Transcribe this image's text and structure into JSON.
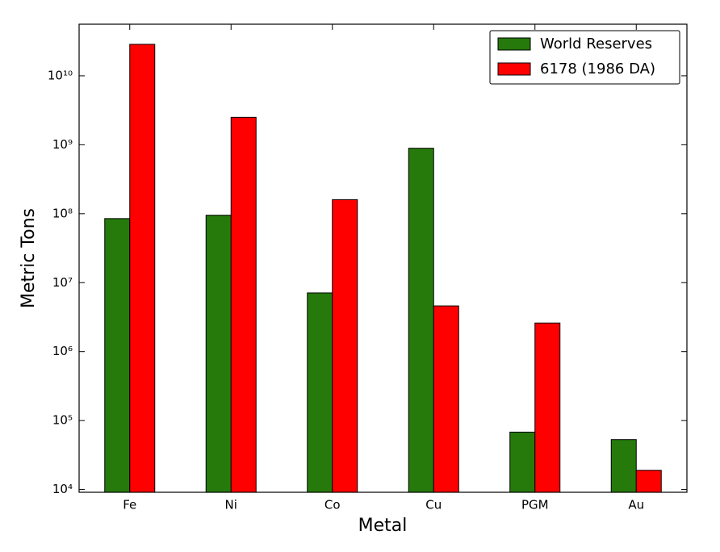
{
  "chart_data": {
    "type": "bar",
    "x_label": "Metal",
    "y_label": "Metric Tons",
    "categories": [
      "Fe",
      "Ni",
      "Co",
      "Cu",
      "PGM",
      "Au"
    ],
    "series": [
      {
        "name": "World Reserves",
        "color": "#267a0c",
        "values": [
          85000000,
          95000000,
          7100000,
          890000000,
          68000,
          53000
        ]
      },
      {
        "name": "6178 (1986 DA)",
        "color": "#ff0000",
        "values": [
          28600000000,
          2500000000,
          160000000,
          4600000,
          2600000,
          19000
        ]
      }
    ],
    "log_scale": true,
    "ylim": [
      9120,
      56000000000
    ],
    "yticks": [
      {
        "value": 10000,
        "label": "10⁴"
      },
      {
        "value": 100000,
        "label": "10⁵"
      },
      {
        "value": 1000000,
        "label": "10⁶"
      },
      {
        "value": 10000000,
        "label": "10⁷"
      },
      {
        "value": 100000000,
        "label": "10⁸"
      },
      {
        "value": 1000000000,
        "label": "10⁹"
      },
      {
        "value": 10000000000,
        "label": "10¹⁰"
      }
    ],
    "legend": "upper right"
  }
}
